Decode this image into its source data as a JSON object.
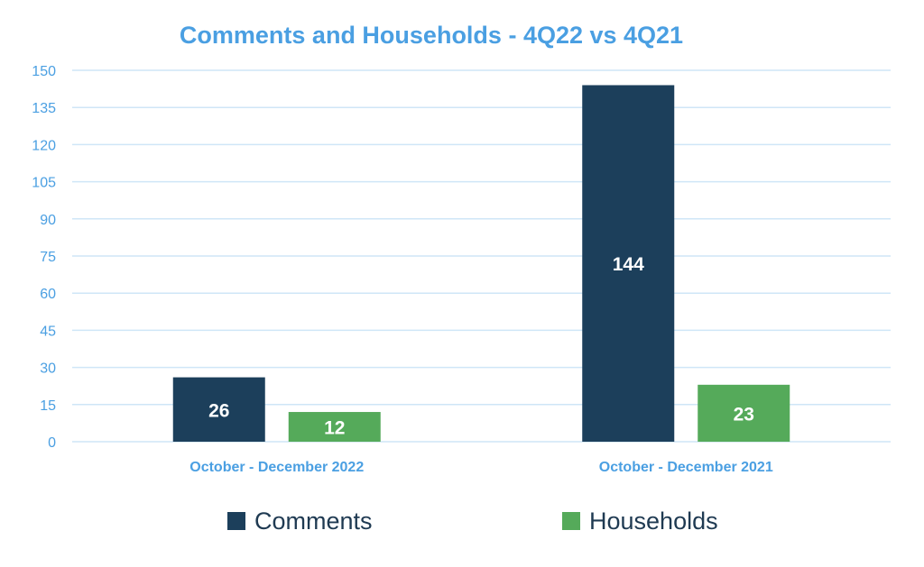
{
  "chart_data": {
    "type": "bar",
    "title": "Comments and Households - 4Q22 vs 4Q21",
    "categories": [
      "October - December 2022",
      "October - December 2021"
    ],
    "series": [
      {
        "name": "Comments",
        "values": [
          26,
          144
        ],
        "color": "#1c3f5b"
      },
      {
        "name": "Households",
        "values": [
          12,
          23
        ],
        "color": "#55aa5a"
      }
    ],
    "yticks": [
      0,
      15,
      30,
      45,
      60,
      75,
      90,
      105,
      120,
      135,
      150
    ],
    "ylim": [
      0,
      150
    ],
    "grid": true,
    "legend_position": "bottom",
    "colors": {
      "title": "#4a9fe2",
      "ticks": "#4a9fe2",
      "grid": "#cfe6f7",
      "data_label": "#ffffff"
    }
  }
}
